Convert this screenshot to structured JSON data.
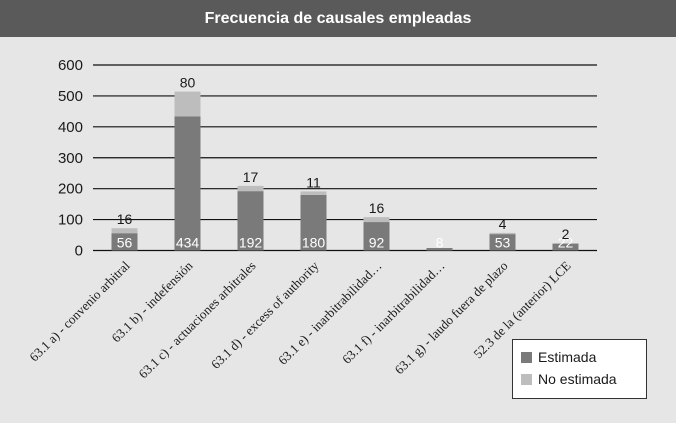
{
  "chart_data": {
    "type": "bar",
    "stacked": true,
    "title": "Frecuencia de causales empleadas",
    "categories": [
      "63.1 a) - convenio arbitral",
      "63.1 b) - indefensión",
      "63.1 c) - actuaciones arbitrales",
      "63.1 d) - excess of authority",
      "63.1 e) - inarbitrabilidad…",
      "63.1 f) - inarbitrabilidad…",
      "63.1 g) - laudo fuera de plazo",
      "52.3 de la (anterior) LCE"
    ],
    "series": [
      {
        "name": "Estimada",
        "color": "#7a7a7a",
        "values": [
          56,
          434,
          192,
          180,
          92,
          8,
          53,
          22
        ]
      },
      {
        "name": "No estimada",
        "color": "#bdbdbd",
        "values": [
          16,
          80,
          17,
          11,
          16,
          0,
          4,
          2
        ]
      }
    ],
    "top_labels": [
      "16",
      "80",
      "17",
      "11",
      "16",
      "",
      "4",
      "2"
    ],
    "inside_labels": [
      "56",
      "434",
      "192",
      "180",
      "92",
      "8",
      "53",
      "22"
    ],
    "ylim": [
      0,
      600
    ],
    "yticks": [
      0,
      100,
      200,
      300,
      400,
      500,
      600
    ],
    "grid": true,
    "legend_position": "bottom-right"
  }
}
